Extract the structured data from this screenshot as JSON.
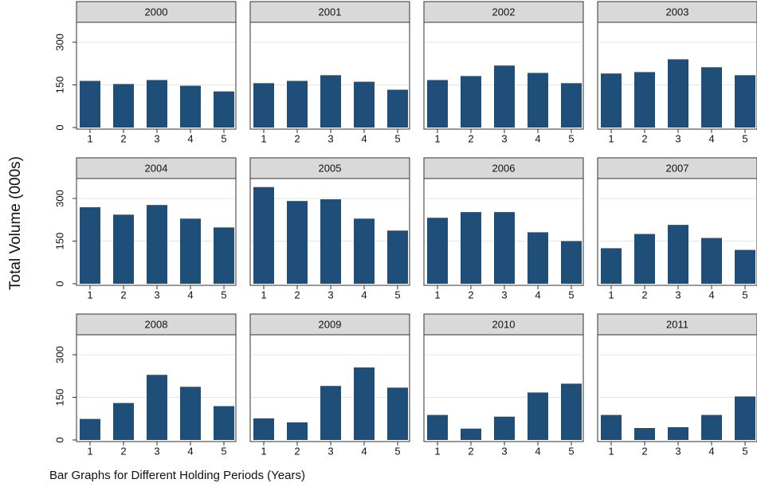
{
  "chart_data": {
    "type": "bar",
    "y_label": "Total Volume (000s)",
    "x_label": "Bar Graphs for Different Holding Periods (Years)",
    "categories": [
      "1",
      "2",
      "3",
      "4",
      "5"
    ],
    "ylim": [
      0,
      370
    ],
    "yticks": [
      0,
      150,
      300
    ],
    "grid": true,
    "color": "#1f4e79",
    "panels": [
      {
        "title": "2000",
        "values": [
          164,
          153,
          167,
          147,
          127
        ]
      },
      {
        "title": "2001",
        "values": [
          156,
          164,
          184,
          161,
          133
        ]
      },
      {
        "title": "2002",
        "values": [
          167,
          181,
          218,
          192,
          156
        ]
      },
      {
        "title": "2003",
        "values": [
          190,
          195,
          240,
          212,
          184
        ]
      },
      {
        "title": "2004",
        "values": [
          269,
          243,
          277,
          229,
          198
        ]
      },
      {
        "title": "2005",
        "values": [
          340,
          291,
          297,
          229,
          187
        ]
      },
      {
        "title": "2006",
        "values": [
          232,
          252,
          252,
          181,
          150
        ]
      },
      {
        "title": "2007",
        "values": [
          125,
          175,
          207,
          161,
          119
        ]
      },
      {
        "title": "2008",
        "values": [
          74,
          130,
          229,
          187,
          119
        ]
      },
      {
        "title": "2009",
        "values": [
          76,
          62,
          190,
          255,
          184
        ]
      },
      {
        "title": "2010",
        "values": [
          88,
          40,
          82,
          167,
          198
        ]
      },
      {
        "title": "2011",
        "values": [
          88,
          42,
          45,
          88,
          153
        ]
      }
    ]
  }
}
